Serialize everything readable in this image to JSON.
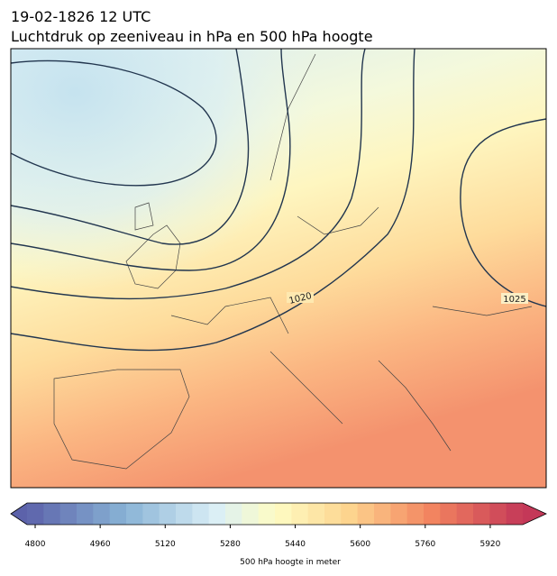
{
  "header": {
    "date": "19-02-1826 12 UTC",
    "title": "Luchtdruk op zeeniveau in hPa en 500 hPa hoogte"
  },
  "map": {
    "contour_labels": [
      "1020",
      "1025"
    ]
  },
  "colorbar": {
    "range": [
      4780,
      6000
    ],
    "ticks": [
      4800,
      4960,
      5120,
      5280,
      5440,
      5600,
      5760,
      5920
    ],
    "label": "500 hPa hoogte in meter"
  }
}
